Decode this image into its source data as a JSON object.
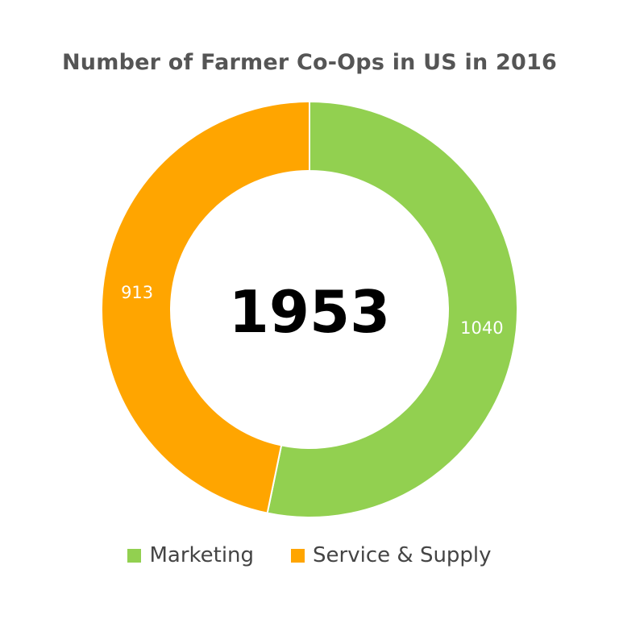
{
  "chart_data": {
    "type": "pie",
    "variant": "donut",
    "title": "Number of Farmer Co-Ops in US in 2016",
    "center_label": "1953",
    "slices": [
      {
        "label": "Marketing",
        "value": 1040,
        "value_label": "1040",
        "color": "#92d050"
      },
      {
        "label": "Service & Supply",
        "value": 913,
        "value_label": "913",
        "color": "#ffa500"
      }
    ],
    "start_angle_deg": 0,
    "direction": "clockwise",
    "legend_position": "bottom"
  }
}
